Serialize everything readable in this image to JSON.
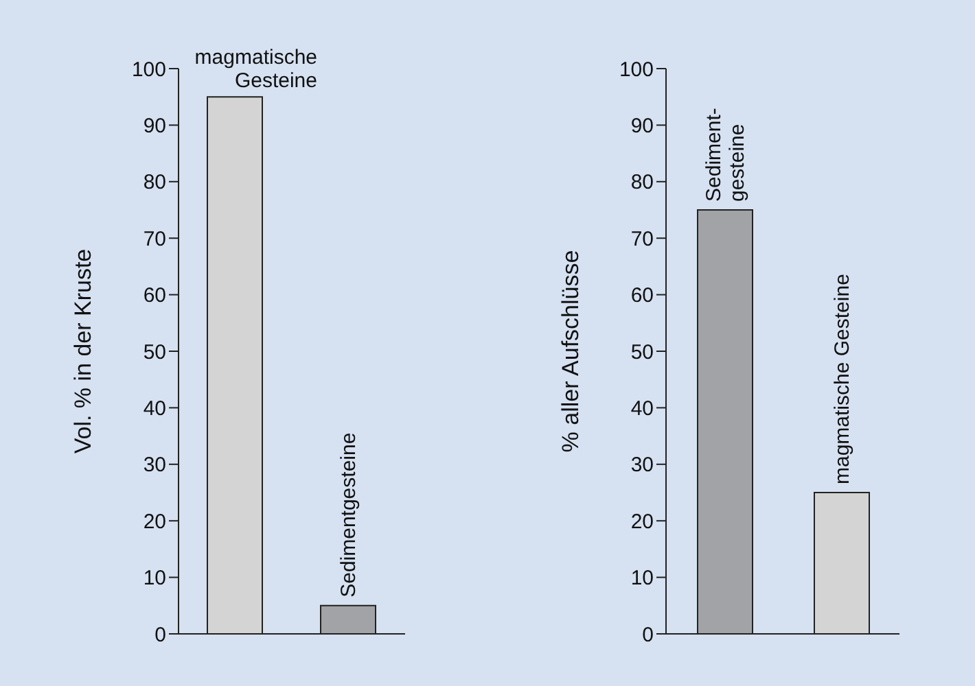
{
  "chart_data": [
    {
      "type": "bar",
      "categories": [
        null,
        null
      ],
      "values": [
        95,
        5
      ],
      "colors": [
        "#d4d4d4",
        "#a2a3a6"
      ],
      "ylabel": "Vol. % in der Kruste",
      "ylim": [
        0,
        100
      ],
      "yticks": [
        0,
        10,
        20,
        30,
        40,
        50,
        60,
        70,
        80,
        90,
        100
      ],
      "grid": false,
      "legend": false,
      "annotations": [
        "magmatische\nGesteine",
        "Sedimentgesteine"
      ]
    },
    {
      "type": "bar",
      "categories": [
        null,
        null
      ],
      "values": [
        75,
        25
      ],
      "colors": [
        "#a2a3a6",
        "#d4d4d4"
      ],
      "ylabel": "% aller Aufschlüsse",
      "ylim": [
        0,
        100
      ],
      "yticks": [
        0,
        10,
        20,
        30,
        40,
        50,
        60,
        70,
        80,
        90,
        100
      ],
      "grid": false,
      "legend": false,
      "annotations": [
        "Sediment-\ngesteine",
        "magmatische Gesteine"
      ]
    }
  ]
}
